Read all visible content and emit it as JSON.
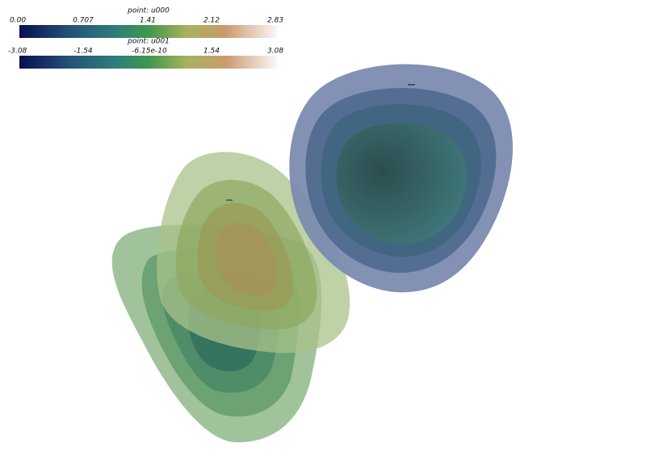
{
  "colorbars": [
    {
      "title": "point: u000",
      "ticks": [
        "0.00",
        "0.707",
        "1.41",
        "2.12",
        "2.83"
      ]
    },
    {
      "title": "point: u001",
      "ticks": [
        "-3.08",
        "-1.54",
        "-6.15e-10",
        "1.54",
        "3.08"
      ]
    }
  ]
}
